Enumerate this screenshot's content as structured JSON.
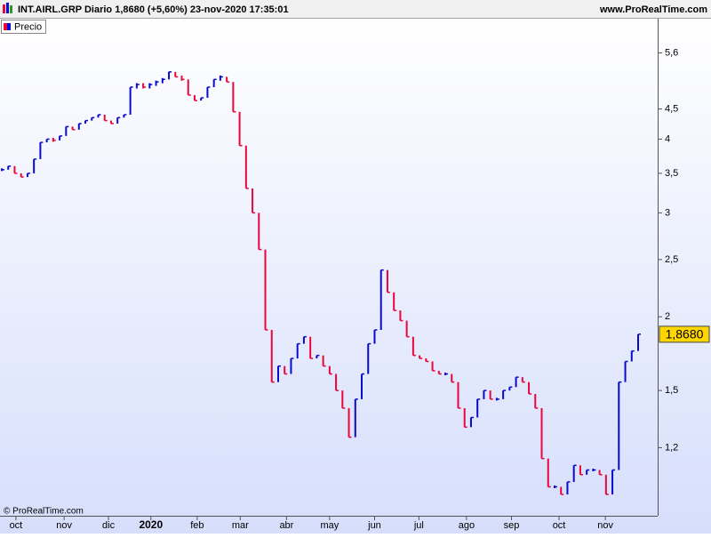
{
  "chart_data": {
    "type": "price-bars",
    "title": "INT.AIRL.GRP Diario 1,8680 (+5,60%) 23-nov-2020 17:35:01",
    "source": "www.ProRealTime.com",
    "copyright": "© ProRealTime.com",
    "legend": "Precio",
    "up_color": "#0a0acc",
    "down_color": "#e8063c",
    "log_scale": true,
    "xlim": [
      0,
      99
    ],
    "xticks": [
      {
        "value": 2.2,
        "label": "oct"
      },
      {
        "value": 9.7,
        "label": "nov"
      },
      {
        "value": 16.6,
        "label": "dic"
      },
      {
        "value": 23.2,
        "label": "2020"
      },
      {
        "value": 30.4,
        "label": "feb"
      },
      {
        "value": 37.1,
        "label": "mar"
      },
      {
        "value": 44.3,
        "label": "abr"
      },
      {
        "value": 51,
        "label": "may"
      },
      {
        "value": 58,
        "label": "jun"
      },
      {
        "value": 64.9,
        "label": "jul"
      },
      {
        "value": 72.3,
        "label": "ago"
      },
      {
        "value": 79.3,
        "label": "sep"
      },
      {
        "value": 86.7,
        "label": "oct"
      },
      {
        "value": 93.9,
        "label": "nov"
      }
    ],
    "ylim": [
      0.92,
      6.4
    ],
    "yticks": [
      {
        "value": 1.2,
        "label": "1,2"
      },
      {
        "value": 1.5,
        "label": "1,5"
      },
      {
        "value": 2,
        "label": "2"
      },
      {
        "value": 2.5,
        "label": "2,5"
      },
      {
        "value": 3,
        "label": "3"
      },
      {
        "value": 3.5,
        "label": "3,5"
      },
      {
        "value": 4,
        "label": "4"
      },
      {
        "value": 4.5,
        "label": "4,5"
      },
      {
        "value": 5.6,
        "label": "5,6"
      }
    ],
    "last_price": {
      "value": 1.868,
      "label": "1,8680"
    },
    "values": [
      3.55,
      3.6,
      3.5,
      3.45,
      3.5,
      3.7,
      3.95,
      4.0,
      3.98,
      4.05,
      4.2,
      4.15,
      4.25,
      4.3,
      4.35,
      4.4,
      4.3,
      4.25,
      4.35,
      4.4,
      4.9,
      4.95,
      4.9,
      4.95,
      5.0,
      5.05,
      5.2,
      5.1,
      5.05,
      4.75,
      4.65,
      4.7,
      4.9,
      5.05,
      5.1,
      5.0,
      4.45,
      3.9,
      3.3,
      3.0,
      2.6,
      1.9,
      1.55,
      1.65,
      1.6,
      1.7,
      1.8,
      1.85,
      1.7,
      1.72,
      1.65,
      1.6,
      1.5,
      1.4,
      1.25,
      1.45,
      1.6,
      1.8,
      1.9,
      2.4,
      2.2,
      2.05,
      1.97,
      1.85,
      1.72,
      1.7,
      1.68,
      1.62,
      1.6,
      1.6,
      1.55,
      1.4,
      1.3,
      1.35,
      1.45,
      1.5,
      1.45,
      1.45,
      1.5,
      1.52,
      1.58,
      1.55,
      1.48,
      1.4,
      1.15,
      1.03,
      1.03,
      1.0,
      1.05,
      1.12,
      1.08,
      1.1,
      1.1,
      1.08,
      1.0,
      1.1,
      1.55,
      1.68,
      1.75,
      1.868
    ]
  }
}
